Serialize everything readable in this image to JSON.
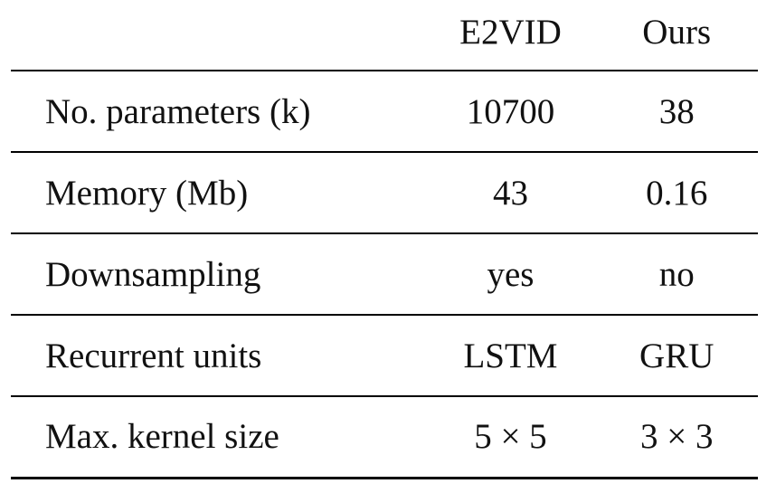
{
  "table": {
    "headers": [
      "",
      "E2VID",
      "Ours"
    ],
    "rows": [
      {
        "label": "No. parameters (k)",
        "e2vid": "10700",
        "ours": "38"
      },
      {
        "label": "Memory (Mb)",
        "e2vid": "43",
        "ours": "0.16"
      },
      {
        "label": "Downsampling",
        "e2vid": "yes",
        "ours": "no"
      },
      {
        "label": "Recurrent units",
        "e2vid": "LSTM",
        "ours": "GRU"
      },
      {
        "label": "Max. kernel size",
        "e2vid": "5 × 5",
        "ours": "3 × 3"
      }
    ]
  }
}
